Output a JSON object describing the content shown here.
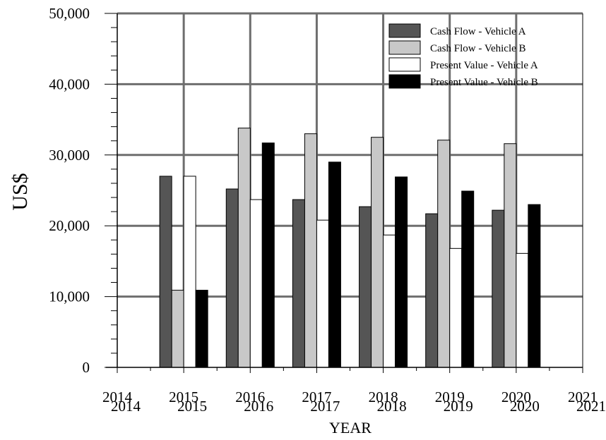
{
  "chart_data": {
    "type": "bar",
    "title": "",
    "xlabel": "YEAR",
    "ylabel": "US$",
    "ylim": [
      0,
      50000
    ],
    "xlim": [
      2014,
      2021
    ],
    "grid": true,
    "legend_position": "top-right",
    "y_ticks": [
      "0",
      "10,000",
      "20,000",
      "30,000",
      "40,000",
      "50,000"
    ],
    "x_ticks": [
      "2014",
      "2015",
      "2016",
      "2017",
      "2018",
      "2019",
      "2020",
      "2021"
    ],
    "x_ticks_shadow": [
      "2014",
      "2015",
      "2016",
      "2017",
      "2018",
      "2019",
      "2020",
      "2021"
    ],
    "categories": [
      "2015",
      "2016",
      "2017",
      "2018",
      "2019",
      "2020"
    ],
    "series": [
      {
        "name": "Cash Flow - Vehicle A",
        "color": "#555555",
        "values": [
          27000,
          25200,
          23700,
          22700,
          21700,
          22200
        ]
      },
      {
        "name": "Cash Flow - Vehicle B",
        "color": "#c8c8c8",
        "values": [
          10900,
          33800,
          33000,
          32500,
          32100,
          31600
        ]
      },
      {
        "name": "Present Value - Vehicle A",
        "color": "#ffffff",
        "values": [
          27000,
          23700,
          20800,
          18700,
          16800,
          16100
        ]
      },
      {
        "name": "Present Value - Vehicle B",
        "color": "#000000",
        "values": [
          10900,
          31700,
          29000,
          26900,
          24900,
          23000
        ]
      }
    ]
  }
}
